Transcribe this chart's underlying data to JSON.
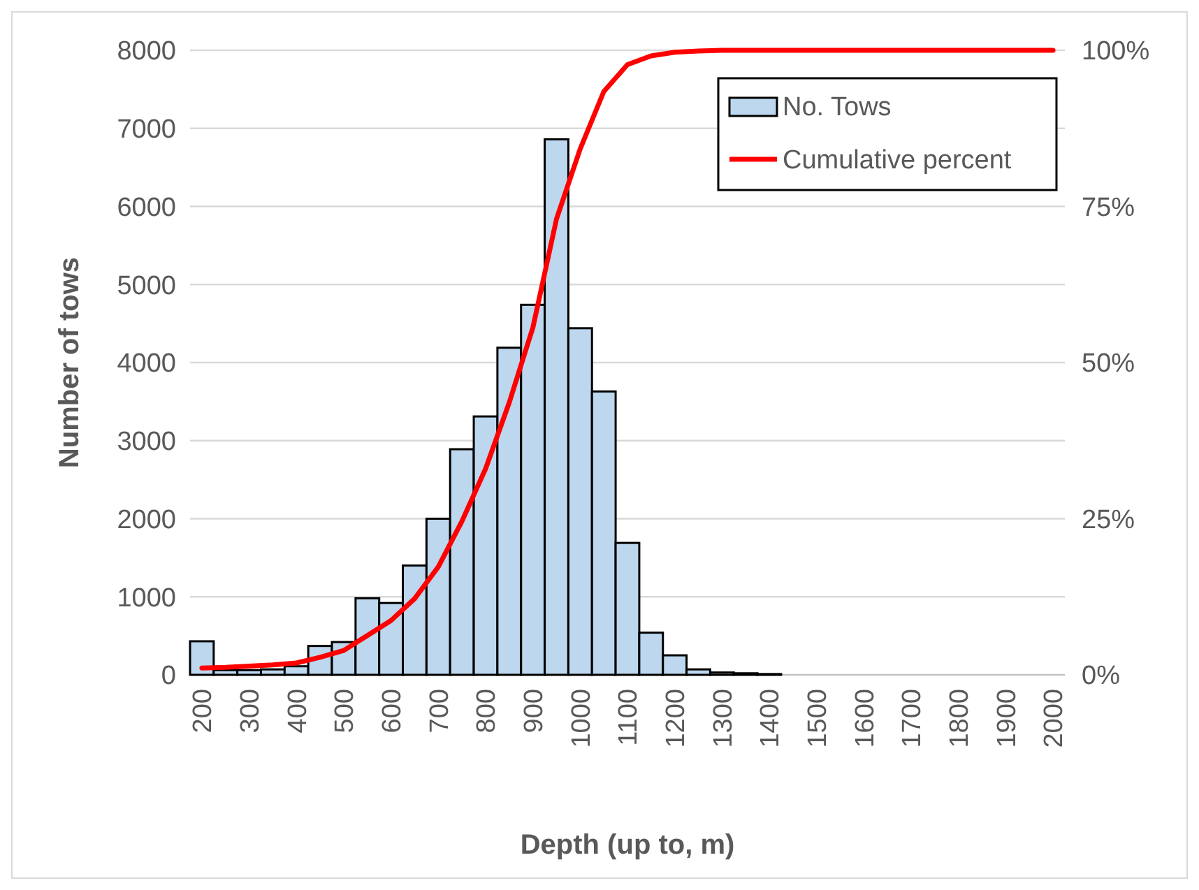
{
  "chart_data": {
    "type": "bar",
    "xlabel": "Depth (up to, m)",
    "ylabel": "Number of tows",
    "categories": [
      "200",
      null,
      "300",
      null,
      "400",
      null,
      "500",
      null,
      "600",
      null,
      "700",
      null,
      "800",
      null,
      "900",
      null,
      "1000",
      null,
      "1100",
      null,
      "1200",
      null,
      "1300",
      null,
      "1400",
      null,
      "1500",
      null,
      "1600",
      null,
      "1700",
      null,
      "1800",
      null,
      "1900",
      null,
      "2000"
    ],
    "series": [
      {
        "name": "No. Tows",
        "color": "#bdd7ee",
        "values": [
          430,
          60,
          60,
          70,
          110,
          370,
          420,
          980,
          920,
          1400,
          2000,
          2890,
          3310,
          4190,
          4740,
          6860,
          4440,
          3630,
          1690,
          540,
          250,
          70,
          30,
          20,
          10,
          0,
          0,
          0,
          0,
          0,
          0,
          0,
          0,
          0,
          0,
          0,
          0
        ]
      },
      {
        "name": "Cumulative percent",
        "type": "line",
        "axis": "y2",
        "color": "#ff0000",
        "values": [
          1.1,
          1.2,
          1.4,
          1.6,
          1.9,
          2.8,
          3.9,
          6.3,
          8.7,
          12.2,
          17.3,
          24.6,
          33.0,
          43.6,
          55.6,
          73.0,
          84.2,
          93.4,
          97.7,
          99.1,
          99.7,
          99.9,
          100,
          100,
          100,
          100,
          100,
          100,
          100,
          100,
          100,
          100,
          100,
          100,
          100,
          100,
          100
        ]
      }
    ],
    "ylim": [
      0,
      8000
    ],
    "yticks": [
      0,
      1000,
      2000,
      3000,
      4000,
      5000,
      6000,
      7000,
      8000
    ],
    "y2lim": [
      0,
      100
    ],
    "y2ticks": [
      {
        "value": 0,
        "label": "0%"
      },
      {
        "value": 25,
        "label": "25%"
      },
      {
        "value": 50,
        "label": "50%"
      },
      {
        "value": 75,
        "label": "75%"
      },
      {
        "value": 100,
        "label": "100%"
      }
    ],
    "grid": "y",
    "legend": "top right",
    "marker": "none",
    "line_style": "solid"
  }
}
